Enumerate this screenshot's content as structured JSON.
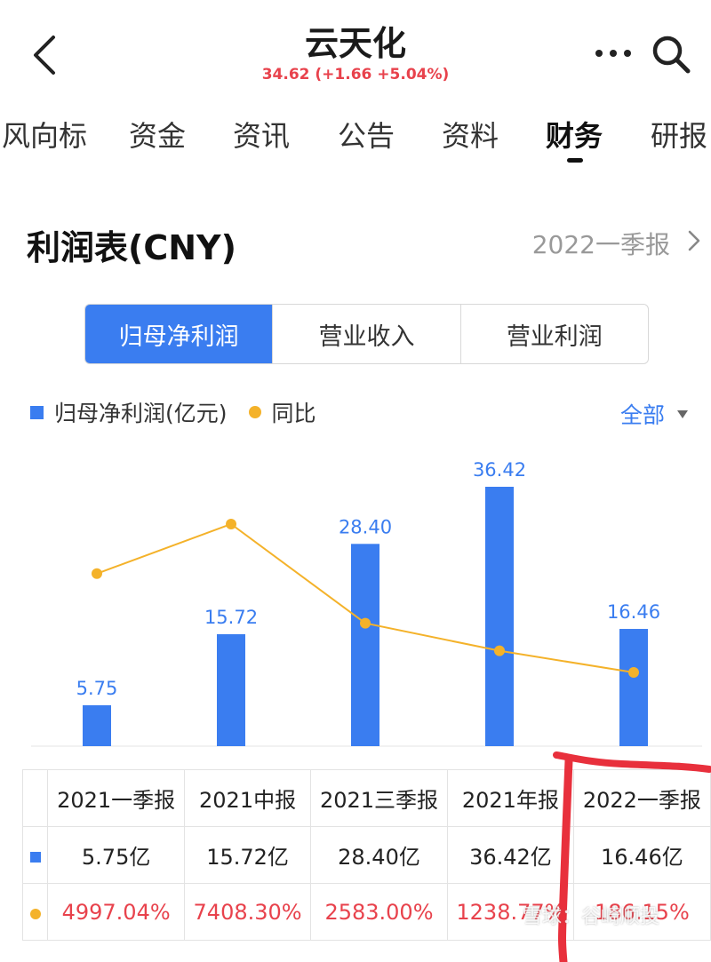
{
  "header": {
    "title": "云天化",
    "quote": "34.62 (+1.66 +5.04%)",
    "icons": [
      "back-chevron-icon",
      "more-icon",
      "search-icon"
    ]
  },
  "tabs": [
    {
      "label": "风向标",
      "active": false
    },
    {
      "label": "资金",
      "active": false
    },
    {
      "label": "资讯",
      "active": false
    },
    {
      "label": "公告",
      "active": false
    },
    {
      "label": "资料",
      "active": false
    },
    {
      "label": "财务",
      "active": true
    },
    {
      "label": "研报",
      "active": false
    }
  ],
  "section": {
    "title": "利润表(CNY)",
    "period": "2022一季报"
  },
  "segments": [
    {
      "label": "归母净利润",
      "active": true
    },
    {
      "label": "营业收入",
      "active": false
    },
    {
      "label": "营业利润",
      "active": false
    }
  ],
  "legend": {
    "bar_label": "归母净利润(亿元)",
    "line_label": "同比",
    "filter": "全部"
  },
  "colors": {
    "accent": "#3a7df0",
    "line": "#f4b22a",
    "negative_red": "#e8424c",
    "annotation": "#e8303c"
  },
  "chart_data": {
    "type": "bar",
    "categories": [
      "2021一季报",
      "2021中报",
      "2021三季报",
      "2021年报",
      "2022一季报"
    ],
    "series": [
      {
        "name": "归母净利润(亿元)",
        "values": [
          5.75,
          15.72,
          28.4,
          36.42,
          16.46
        ],
        "value_labels": [
          "5.75",
          "15.72",
          "28.40",
          "36.42",
          "16.46"
        ]
      },
      {
        "name": "同比",
        "values": [
          4997.04,
          7408.3,
          2583.0,
          1238.77,
          186.15
        ]
      }
    ],
    "grid": false,
    "legend_position": "top-left"
  },
  "table": {
    "headers": [
      "2021一季报",
      "2021中报",
      "2021三季报",
      "2021年报",
      "2022一季报"
    ],
    "values": [
      "5.75亿",
      "15.72亿",
      "28.40亿",
      "36.42亿",
      "16.46亿"
    ],
    "yoy": [
      "4997.04%",
      "7408.30%",
      "2583.00%",
      "1238.77%",
      "186.15%"
    ]
  },
  "watermark": "雪球：谷崎顺投"
}
